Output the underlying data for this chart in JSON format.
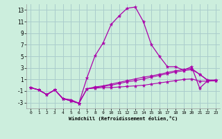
{
  "xlabel": "Windchill (Refroidissement éolien,°C)",
  "background_color": "#cceedd",
  "grid_color": "#aacccc",
  "line_color": "#aa00aa",
  "x": [
    0,
    1,
    2,
    3,
    4,
    5,
    6,
    7,
    8,
    9,
    10,
    11,
    12,
    13,
    14,
    15,
    16,
    17,
    18,
    19,
    20,
    21,
    22,
    23
  ],
  "series1": [
    -0.4,
    -0.8,
    -1.6,
    -0.8,
    -2.3,
    -2.5,
    -3.1,
    1.3,
    5.1,
    7.3,
    10.5,
    12.0,
    13.3,
    13.5,
    11.0,
    7.0,
    5.0,
    3.2,
    3.2,
    2.6,
    3.2,
    -0.5,
    0.8,
    0.8
  ],
  "series2": [
    -0.4,
    -0.8,
    -1.6,
    -0.8,
    -2.3,
    -2.7,
    -3.1,
    -0.6,
    -0.5,
    -0.4,
    -0.4,
    -0.3,
    -0.2,
    -0.1,
    0.0,
    0.2,
    0.4,
    0.6,
    0.8,
    1.0,
    1.1,
    0.7,
    0.7,
    0.8
  ],
  "series3": [
    -0.4,
    -0.8,
    -1.6,
    -0.8,
    -2.3,
    -2.7,
    -3.1,
    -0.6,
    -0.3,
    -0.1,
    0.2,
    0.5,
    0.8,
    1.1,
    1.4,
    1.6,
    1.9,
    2.2,
    2.5,
    2.7,
    2.9,
    1.9,
    0.9,
    0.9
  ],
  "series4": [
    -0.4,
    -0.8,
    -1.6,
    -0.8,
    -2.3,
    -2.7,
    -3.1,
    -0.6,
    -0.4,
    -0.2,
    0.0,
    0.3,
    0.6,
    0.8,
    1.1,
    1.4,
    1.7,
    2.0,
    2.3,
    2.5,
    2.7,
    1.9,
    0.8,
    0.8
  ],
  "ylim": [
    -4,
    14
  ],
  "xlim": [
    -0.5,
    23.5
  ],
  "yticks": [
    -3,
    -1,
    1,
    3,
    5,
    7,
    9,
    11,
    13
  ],
  "xticks": [
    0,
    1,
    2,
    3,
    4,
    5,
    6,
    7,
    8,
    9,
    10,
    11,
    12,
    13,
    14,
    15,
    16,
    17,
    18,
    19,
    20,
    21,
    22,
    23
  ]
}
